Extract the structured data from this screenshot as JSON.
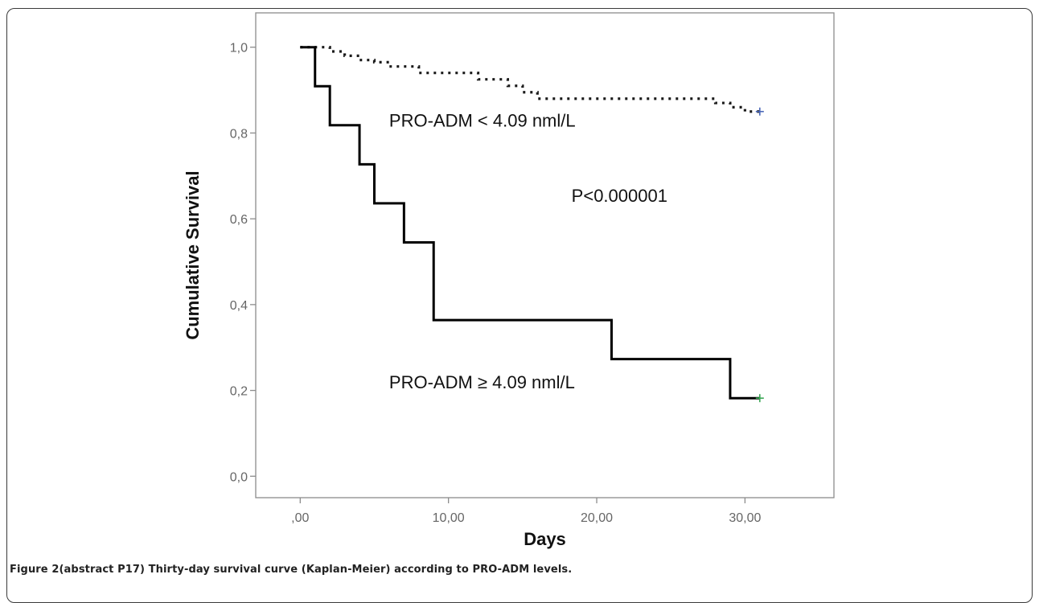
{
  "chart_data": {
    "type": "line",
    "subtype": "kaplan-meier step curve",
    "xlabel": "Days",
    "ylabel": "Cumulative Survival",
    "xlim": [
      -3,
      36
    ],
    "ylim": [
      -0.05,
      1.08
    ],
    "x_ticks": [
      0,
      10,
      20,
      30
    ],
    "x_tick_labels": [
      ",00",
      "10,00",
      "20,00",
      "30,00"
    ],
    "y_ticks": [
      0.0,
      0.2,
      0.4,
      0.6,
      0.8,
      1.0
    ],
    "y_tick_labels": [
      "0,0",
      "0,2",
      "0,4",
      "0,6",
      "0,8",
      "1,0"
    ],
    "grid": false,
    "legend": "none",
    "series": [
      {
        "name": "PRO-ADM < 4.09 nml/L",
        "line_style": "dotted",
        "color": "#1a1a1a",
        "censor_color": "#4a67b8",
        "steps": [
          [
            0,
            1.0
          ],
          [
            2,
            0.99
          ],
          [
            3,
            0.98
          ],
          [
            4,
            0.97
          ],
          [
            5,
            0.965
          ],
          [
            6,
            0.955
          ],
          [
            8,
            0.94
          ],
          [
            12,
            0.925
          ],
          [
            14,
            0.91
          ],
          [
            15,
            0.895
          ],
          [
            16,
            0.88
          ],
          [
            28,
            0.87
          ],
          [
            29,
            0.86
          ],
          [
            30,
            0.85
          ],
          [
            31,
            0.85
          ]
        ],
        "censor_points": [
          [
            31,
            0.85
          ]
        ]
      },
      {
        "name": "PRO-ADM ≥ 4.09 nml/L",
        "line_style": "solid",
        "color": "#000000",
        "censor_color": "#3aa655",
        "steps": [
          [
            0,
            1.0
          ],
          [
            1,
            0.909
          ],
          [
            2,
            0.818
          ],
          [
            4,
            0.727
          ],
          [
            5,
            0.636
          ],
          [
            7,
            0.545
          ],
          [
            9,
            0.364
          ],
          [
            21,
            0.273
          ],
          [
            29,
            0.182
          ],
          [
            31,
            0.182
          ]
        ],
        "censor_points": [
          [
            31,
            0.182
          ]
        ]
      }
    ],
    "annotations": [
      {
        "text": "PRO-ADM < 4.09 nml/L",
        "x": 6,
        "y": 0.815
      },
      {
        "text": "P<0.000001",
        "x": 18.3,
        "y": 0.64
      },
      {
        "text": "PRO-ADM ≥ 4.09 nml/L",
        "x": 6,
        "y": 0.205
      }
    ]
  },
  "caption": {
    "text": "Figure 2(abstract P17) Thirty-day survival curve (Kaplan-Meier) according to PRO-ADM levels."
  }
}
